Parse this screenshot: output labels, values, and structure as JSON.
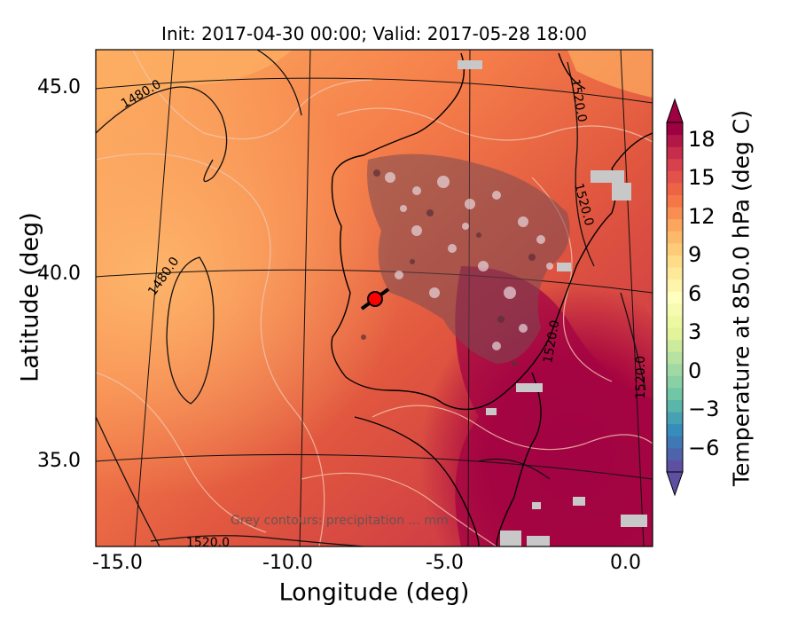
{
  "title": "Init: 2017-04-30 00:00; Valid: 2017-05-28 18:00",
  "axes": {
    "xlabel": "Longitude (deg)",
    "ylabel": "Latitude (deg)",
    "lon_ticks": [
      "-15.0",
      "-10.0",
      "-5.0",
      "0.0"
    ],
    "lat_ticks": [
      "45.0",
      "40.0",
      "35.0"
    ]
  },
  "colorbar": {
    "label": "Temperature at 850.0 hPa (deg C)",
    "ticks": [
      "18",
      "15",
      "12",
      "9",
      "6",
      "3",
      "0",
      "−3",
      "−6"
    ],
    "range": [
      -8,
      21
    ],
    "extend": "both",
    "colormap": "Spectral_r"
  },
  "map": {
    "contour_labels": [
      "1480.0",
      "1480.0",
      "1520.0",
      "1520.0",
      "1520.0",
      "1520.0",
      "1520.0"
    ],
    "note": "Grey contours: precipitation  ... mm",
    "marker": {
      "lat": 39.3,
      "lon": -7.6,
      "color": "#ff0000"
    }
  },
  "colors": {
    "warm_max": "#9e0142",
    "warm": "#d53e4f",
    "orange": "#f46d43",
    "light_orange": "#fdae61",
    "precip_grey": "#c8c8c8"
  }
}
